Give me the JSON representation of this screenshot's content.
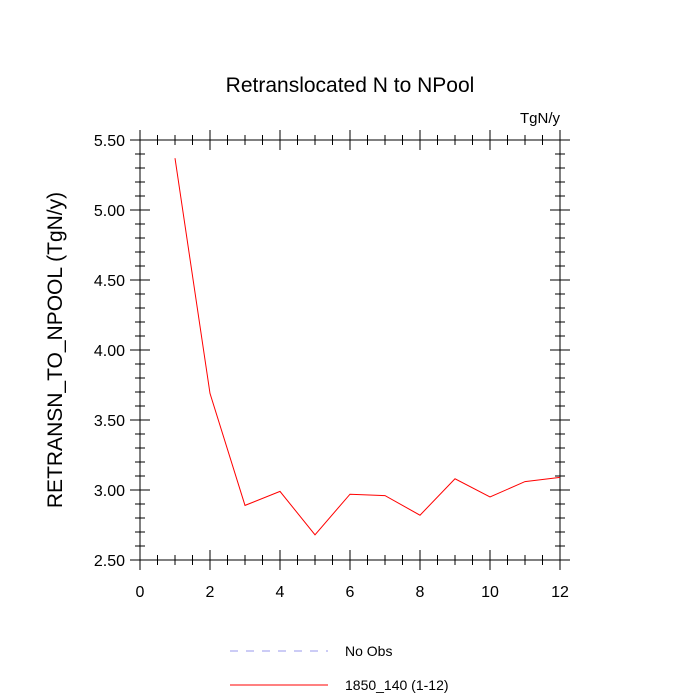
{
  "chart_data": {
    "type": "line",
    "title": "Retranslocated N to NPool",
    "units_label": "TgN/y",
    "ylabel": "RETRANSN_TO_NPOOL  (TgN/y)",
    "xlabel": "",
    "xlim": [
      0,
      12
    ],
    "ylim": [
      2.5,
      5.5
    ],
    "x_ticks": [
      0,
      2,
      4,
      6,
      8,
      10,
      12
    ],
    "x_tick_labels": [
      "0",
      "2",
      "4",
      "6",
      "8",
      "10",
      "12"
    ],
    "y_ticks": [
      2.5,
      3.0,
      3.5,
      4.0,
      4.5,
      5.0,
      5.5
    ],
    "y_tick_labels": [
      "2.50",
      "3.00",
      "3.50",
      "4.00",
      "4.50",
      "5.00",
      "5.50"
    ],
    "grid": false,
    "legend_position": "bottom",
    "series": [
      {
        "name": "No Obs",
        "color": "#9999ee",
        "style": "dashed",
        "x": [],
        "values": []
      },
      {
        "name": "1850_140 (1-12)",
        "color": "#ff0000",
        "style": "solid",
        "x": [
          1,
          2,
          3,
          4,
          5,
          6,
          7,
          8,
          9,
          10,
          11,
          12
        ],
        "values": [
          5.37,
          3.69,
          2.89,
          2.99,
          2.68,
          2.97,
          2.96,
          2.82,
          3.08,
          2.95,
          3.06,
          3.09
        ]
      }
    ]
  }
}
